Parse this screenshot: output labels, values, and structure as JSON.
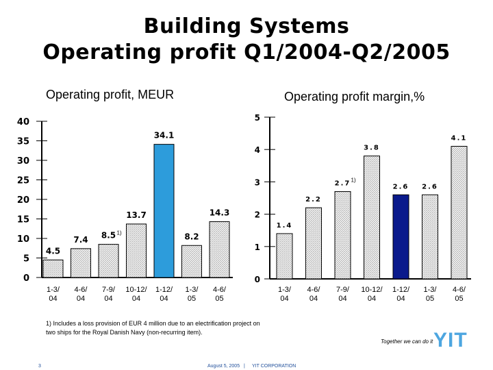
{
  "title_line1": "Building Systems",
  "title_line2": "Operating profit Q1/2004-Q2/2005",
  "footnote": "1) Includes a loss provision of EUR 4 million due to an electrification project on two ships for the Royal Danish Navy (non-recurring item).",
  "tagline": "Together we can do it",
  "logo": "YIT",
  "footer": {
    "page": "3",
    "date": "August 5, 2005",
    "separator": "|",
    "company": "YIT CORPORATION"
  },
  "colors": {
    "hatch_fg": "#b4b4b4",
    "highlight_left": "#2d9cdb",
    "highlight_right": "#0a1a8c",
    "axis": "#000000"
  },
  "chart_data": [
    {
      "type": "bar",
      "title": "Operating profit, MEUR",
      "categories": [
        "1-3/ 04",
        "4-6/ 04",
        "7-9/ 04",
        "10-12/ 04",
        "1-12/ 04",
        "1-3/ 05",
        "4-6/ 05"
      ],
      "values": [
        4.5,
        7.4,
        8.5,
        13.7,
        34.1,
        8.2,
        14.3
      ],
      "value_labels": [
        "4.5",
        "7.4",
        "8.5",
        "13.7",
        "34.1",
        "8.2",
        "14.3"
      ],
      "highlight_index": 4,
      "annotation": {
        "index": 2,
        "text": "1)"
      },
      "ylim": [
        0,
        40
      ],
      "yticks": [
        0,
        5,
        10,
        15,
        20,
        25,
        30,
        35,
        40
      ],
      "ytick_labels": [
        "0",
        "5",
        "10",
        "15",
        "20",
        "25",
        "30",
        "35",
        "40"
      ]
    },
    {
      "type": "bar",
      "title": "Operating profit margin,%",
      "categories": [
        "1-3/ 04",
        "4-6/ 04",
        "7-9/ 04",
        "10-12/ 04",
        "1-12/ 04",
        "1-3/ 05",
        "4-6/ 05"
      ],
      "values": [
        1.4,
        2.2,
        2.7,
        3.8,
        2.6,
        2.6,
        4.1
      ],
      "value_labels": [
        "1.4",
        "2.2",
        "2.7",
        "3.8",
        "2.6",
        "2.6",
        "4.1"
      ],
      "highlight_index": 4,
      "annotation": {
        "index": 2,
        "text": "1)"
      },
      "ylim": [
        0,
        5
      ],
      "yticks": [
        0,
        1,
        2,
        3,
        4,
        5
      ],
      "ytick_labels": [
        "0",
        "1",
        "2",
        "3",
        "4",
        "5"
      ]
    }
  ]
}
